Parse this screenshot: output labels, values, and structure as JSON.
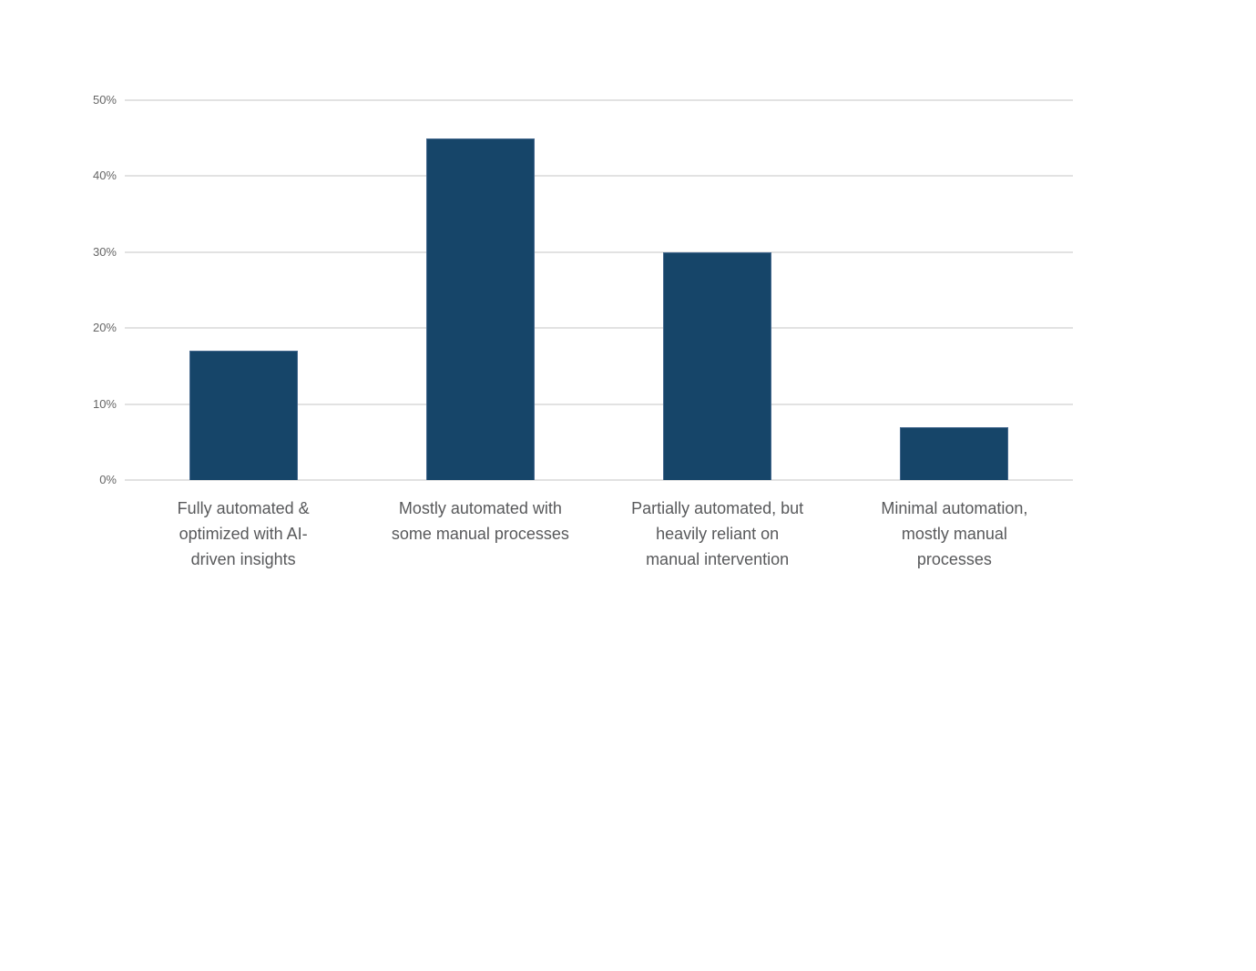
{
  "chart_data": {
    "type": "bar",
    "title": "",
    "xlabel": "",
    "ylabel": "",
    "categories": [
      {
        "label": "Fully automated & optimized with AI-driven insights",
        "lines": [
          "Fully automated &",
          "optimized with AI-",
          "driven insights"
        ]
      },
      {
        "label": "Mostly automated with some manual processes",
        "lines": [
          "Mostly automated with",
          "some manual processes"
        ]
      },
      {
        "label": "Partially automated, but heavily reliant on manual intervention",
        "lines": [
          "Partially automated, but",
          "heavily reliant on",
          "manual intervention"
        ]
      },
      {
        "label": "Minimal automation, mostly manual processes",
        "lines": [
          "Minimal automation,",
          "mostly manual",
          "processes"
        ]
      }
    ],
    "values": [
      17,
      45,
      30,
      7
    ],
    "ylim": [
      0,
      50
    ],
    "yticks": [
      0,
      10,
      20,
      30,
      40,
      50
    ],
    "ytick_labels": [
      "0%",
      "10%",
      "20%",
      "30%",
      "40%",
      "50%"
    ],
    "grid": true,
    "legend": "none",
    "colors": {
      "bar_fill": "#164569",
      "bar_stroke": "#46698e",
      "gridline": "#e2e2e2",
      "ytick_text": "#666666",
      "category_text": "#58595b",
      "background": "#ffffff"
    }
  }
}
